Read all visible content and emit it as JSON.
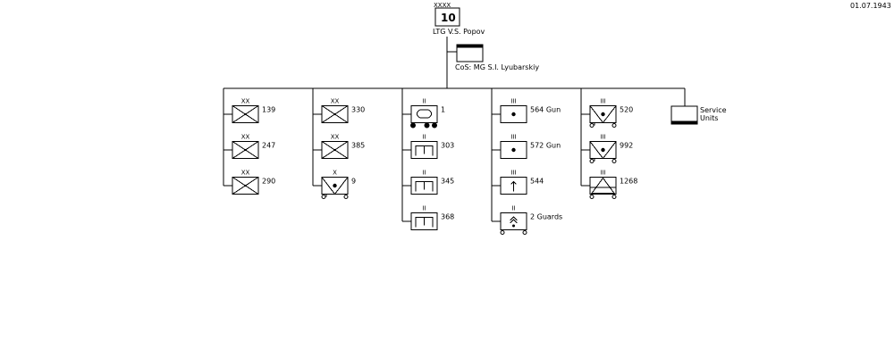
{
  "date": "01.07.1943",
  "army": {
    "echelon": "XXXX",
    "number": "10",
    "commander": "LTG V.S. Popov",
    "chief_of_staff": "CoS: MG S.I. Lyubarskiy"
  },
  "columns": [
    {
      "units": [
        {
          "echelon": "XX",
          "label": "139",
          "type": "rifle-division"
        },
        {
          "echelon": "XX",
          "label": "247",
          "type": "rifle-division"
        },
        {
          "echelon": "XX",
          "label": "290",
          "type": "rifle-division"
        }
      ]
    },
    {
      "units": [
        {
          "echelon": "XX",
          "label": "330",
          "type": "rifle-division"
        },
        {
          "echelon": "XX",
          "label": "385",
          "type": "rifle-division"
        },
        {
          "echelon": "X",
          "label": "9",
          "type": "motorized-antitank-brigade"
        }
      ]
    },
    {
      "units": [
        {
          "echelon": "II",
          "label": "1",
          "type": "armored-train"
        },
        {
          "echelon": "II",
          "label": "303",
          "type": "engineer-battalion"
        },
        {
          "echelon": "II",
          "label": "345",
          "type": "engineer-battalion"
        },
        {
          "echelon": "II",
          "label": "368",
          "type": "engineer-battalion"
        }
      ]
    },
    {
      "units": [
        {
          "echelon": "III",
          "label": "564 Gun",
          "type": "artillery-regiment"
        },
        {
          "echelon": "III",
          "label": "572 Gun",
          "type": "artillery-regiment"
        },
        {
          "echelon": "III",
          "label": "544",
          "type": "mortar-regiment"
        },
        {
          "echelon": "II",
          "label": "2 Guards",
          "type": "guards-rocket-battalion"
        }
      ]
    },
    {
      "units": [
        {
          "echelon": "III",
          "label": "520",
          "type": "motorized-antitank-regiment"
        },
        {
          "echelon": "III",
          "label": "992",
          "type": "motorized-antitank-regiment"
        },
        {
          "echelon": "III",
          "label": "1268",
          "type": "motorized-antiaircraft-regiment"
        }
      ]
    }
  ],
  "service": {
    "line1": "Service",
    "line2": "Units"
  }
}
